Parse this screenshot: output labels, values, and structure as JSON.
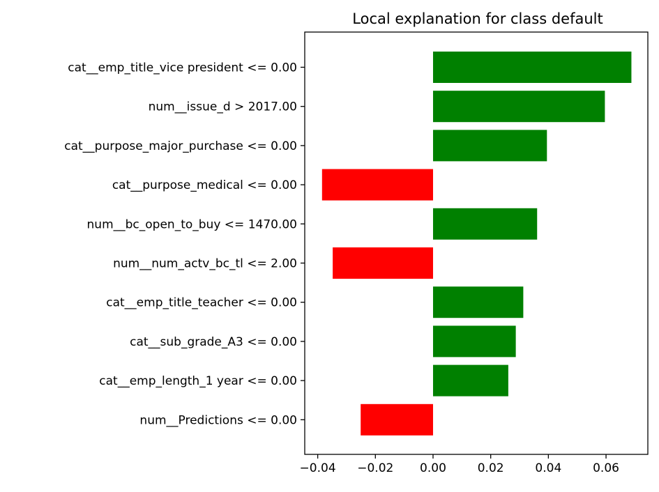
{
  "chart_data": {
    "type": "bar",
    "orientation": "horizontal",
    "title": "Local explanation for class default",
    "xlabel": "",
    "ylabel": "",
    "xlim": [
      -0.0445,
      0.0745
    ],
    "xticks": [
      -0.04,
      -0.02,
      0.0,
      0.02,
      0.04,
      0.06
    ],
    "xtick_labels": [
      "−0.04",
      "−0.02",
      "0.00",
      "0.02",
      "0.04",
      "0.06"
    ],
    "grid": false,
    "legend": "none",
    "categories": [
      "cat__emp_title_vice president <= 0.00",
      "num__issue_d > 2017.00",
      "cat__purpose_major_purchase <= 0.00",
      "cat__purpose_medical <= 0.00",
      "num__bc_open_to_buy <= 1470.00",
      "num__num_actv_bc_tl <= 2.00",
      "cat__emp_title_teacher <= 0.00",
      "cat__sub_grade_A3 <= 0.00",
      "cat__emp_length_1 year <= 0.00",
      "num__Predictions <= 0.00"
    ],
    "values": [
      0.0688,
      0.0596,
      0.0395,
      -0.0385,
      0.0361,
      -0.0348,
      0.0313,
      0.0287,
      0.0261,
      -0.0251
    ],
    "colors": {
      "positive": "#008000",
      "negative": "#ff0000"
    }
  }
}
